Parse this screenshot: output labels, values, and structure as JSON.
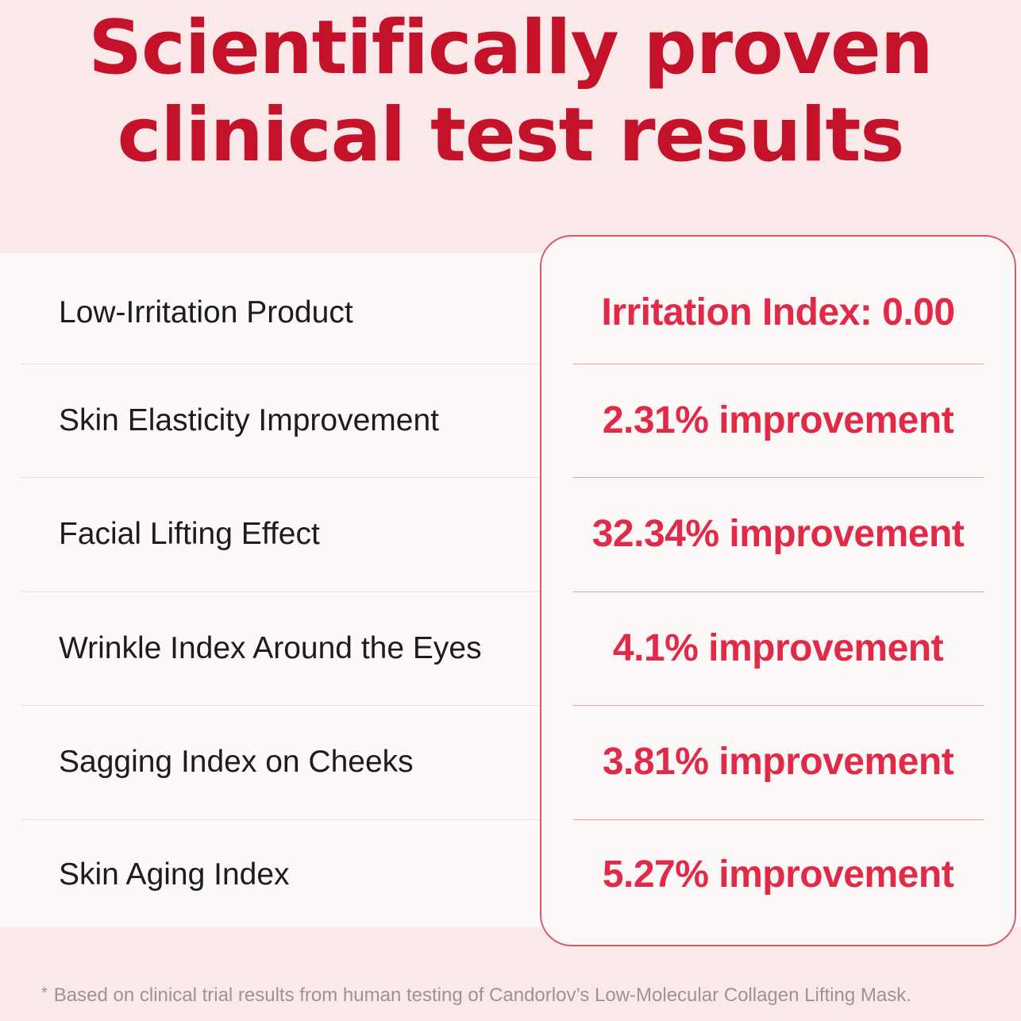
{
  "title": {
    "line1": "Scientifically proven",
    "line2": "clinical test results"
  },
  "results": [
    {
      "label": "Low-Irritation Product",
      "value": "Irritation Index: 0.00"
    },
    {
      "label": "Skin Elasticity Improvement",
      "value": "2.31% improvement"
    },
    {
      "label": "Facial Lifting Effect",
      "value": "32.34% improvement"
    },
    {
      "label": "Wrinkle Index Around the Eyes",
      "value": "4.1% improvement"
    },
    {
      "label": "Sagging Index on Cheeks",
      "value": "3.81% improvement"
    },
    {
      "label": "Skin Aging Index",
      "value": "5.27% improvement"
    }
  ],
  "footnote": {
    "marker": "*",
    "text": "Based on clinical trial results from human testing of Candorlov’s Low-Molecular Collagen Lifting Mask."
  },
  "colors": {
    "title": "#c4122a",
    "value": "#e02a48",
    "background": "#fbe9ea"
  }
}
